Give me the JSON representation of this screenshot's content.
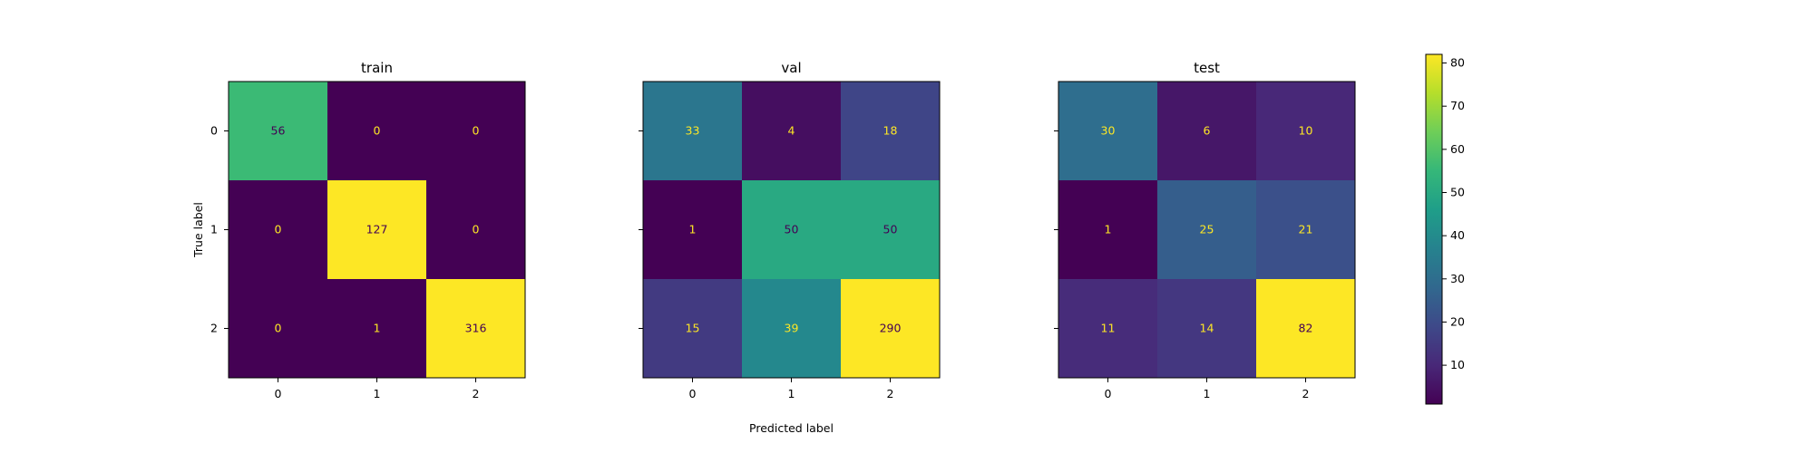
{
  "chart_data": [
    {
      "type": "heatmap",
      "title": "train",
      "x": [
        "0",
        "1",
        "2"
      ],
      "y": [
        "0",
        "1",
        "2"
      ],
      "values": [
        [
          56,
          0,
          0
        ],
        [
          0,
          127,
          0
        ],
        [
          0,
          1,
          316
        ]
      ],
      "xlabel": "",
      "ylabel": "True label"
    },
    {
      "type": "heatmap",
      "title": "val",
      "x": [
        "0",
        "1",
        "2"
      ],
      "y": [
        "0",
        "1",
        "2"
      ],
      "values": [
        [
          33,
          4,
          18
        ],
        [
          1,
          50,
          50
        ],
        [
          15,
          39,
          290
        ]
      ],
      "xlabel": "Predicted label",
      "ylabel": ""
    },
    {
      "type": "heatmap",
      "title": "test",
      "x": [
        "0",
        "1",
        "2"
      ],
      "y": [
        "0",
        "1",
        "2"
      ],
      "values": [
        [
          30,
          6,
          10
        ],
        [
          1,
          25,
          21
        ],
        [
          11,
          14,
          82
        ]
      ],
      "xlabel": "",
      "ylabel": ""
    }
  ],
  "colorbar": {
    "range": [
      1,
      82
    ],
    "ticks": [
      10,
      20,
      30,
      40,
      50,
      60,
      70,
      80
    ],
    "colormap": "viridis"
  },
  "colors": {
    "viridis": [
      "#440154",
      "#482878",
      "#3e4989",
      "#31688e",
      "#26828e",
      "#1f9e89",
      "#35b779",
      "#6ece58",
      "#b5de2b",
      "#fde725"
    ],
    "text_on_dark": "#fde725",
    "text_on_light": "#440154"
  }
}
